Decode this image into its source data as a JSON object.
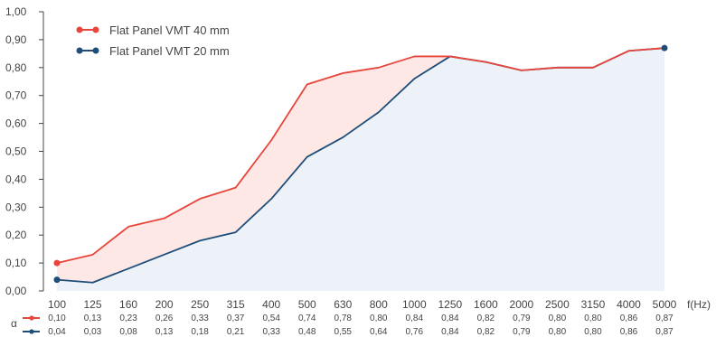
{
  "chart_data": {
    "type": "line",
    "x": [
      "100",
      "125",
      "160",
      "200",
      "250",
      "315",
      "400",
      "500",
      "630",
      "800",
      "1000",
      "1250",
      "1600",
      "2000",
      "2500",
      "3150",
      "4000",
      "5000"
    ],
    "x_unit_label": "f(Hz)",
    "y_ticks": [
      "0,00",
      "0,10",
      "0,20",
      "0,30",
      "0,40",
      "0,50",
      "0,60",
      "0,70",
      "0,80",
      "0,90",
      "1,00"
    ],
    "ylim": [
      0,
      1.0
    ],
    "table_symbol": "α",
    "legend_position": "top-left",
    "grid": false,
    "series": [
      {
        "name": "Flat Panel VMT 40 mm",
        "color": "#e8453c",
        "fill": "#fde8e6",
        "values": [
          0.1,
          0.13,
          0.23,
          0.26,
          0.33,
          0.37,
          0.54,
          0.74,
          0.78,
          0.8,
          0.84,
          0.84,
          0.82,
          0.79,
          0.8,
          0.8,
          0.86,
          0.87
        ],
        "labels": [
          "0,10",
          "0,13",
          "0,23",
          "0,26",
          "0,33",
          "0,37",
          "0,54",
          "0,74",
          "0,78",
          "0,80",
          "0,84",
          "0,84",
          "0,82",
          "0,79",
          "0,80",
          "0,80",
          "0,86",
          "0,87"
        ]
      },
      {
        "name": "Flat Panel VMT 20 mm",
        "color": "#1f4e79",
        "fill": "#edf2f8",
        "values": [
          0.04,
          0.03,
          0.08,
          0.13,
          0.18,
          0.21,
          0.33,
          0.48,
          0.55,
          0.64,
          0.76,
          0.84,
          0.82,
          0.79,
          0.8,
          0.8,
          0.86,
          0.87
        ],
        "labels": [
          "0,04",
          "0,03",
          "0,08",
          "0,13",
          "0,18",
          "0,21",
          "0,33",
          "0,48",
          "0,55",
          "0,64",
          "0,76",
          "0,84",
          "0,82",
          "0,79",
          "0,80",
          "0,80",
          "0,86",
          "0,87"
        ]
      }
    ]
  }
}
